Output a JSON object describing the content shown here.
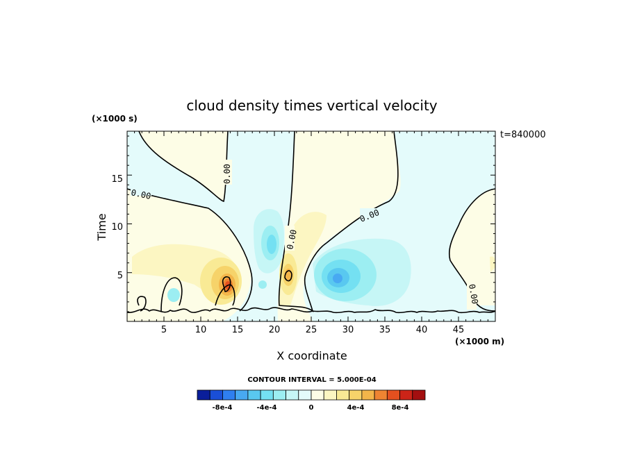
{
  "chart_data": {
    "type": "contour",
    "title": "cloud density times vertical velocity",
    "xlabel": "X coordinate",
    "ylabel": "Time",
    "x_units": "(×1000 m)",
    "y_units": "(×1000 s)",
    "time_stamp": "t=840000",
    "xlim": [
      0,
      50
    ],
    "ylim": [
      0,
      19.5
    ],
    "x_ticks": [
      5,
      10,
      15,
      20,
      25,
      30,
      35,
      40,
      45
    ],
    "y_ticks": [
      5,
      10,
      15
    ],
    "contour_line_labels": [
      "0.00",
      "0.00",
      "0.00",
      "0.00",
      "0.00"
    ],
    "contour_interval_text": "CONTOUR INTERVAL = 5.000E-04",
    "colorbar": {
      "labels": [
        "-8e-4",
        "-4e-4",
        "0",
        "4e-4",
        "8e-4"
      ],
      "colors": [
        "#0a1e9a",
        "#1a4fd6",
        "#2f7ff0",
        "#48a9f2",
        "#59c8f0",
        "#74e0f2",
        "#9ceef2",
        "#c6f6f6",
        "#e4fbfb",
        "#fdfde6",
        "#fcf6c2",
        "#f9ea95",
        "#f6d36a",
        "#f3b54a",
        "#ee8432",
        "#e4501f",
        "#cc2418",
        "#a30f10"
      ]
    },
    "features": [
      {
        "kind": "positive_max",
        "x": 13.5,
        "y": 3.8
      },
      {
        "kind": "positive_max",
        "x": 21.8,
        "y": 4.8
      },
      {
        "kind": "negative_min",
        "x": 28.5,
        "y": 4.6
      },
      {
        "kind": "negative_min",
        "x": 19.5,
        "y": 8.0
      }
    ]
  }
}
